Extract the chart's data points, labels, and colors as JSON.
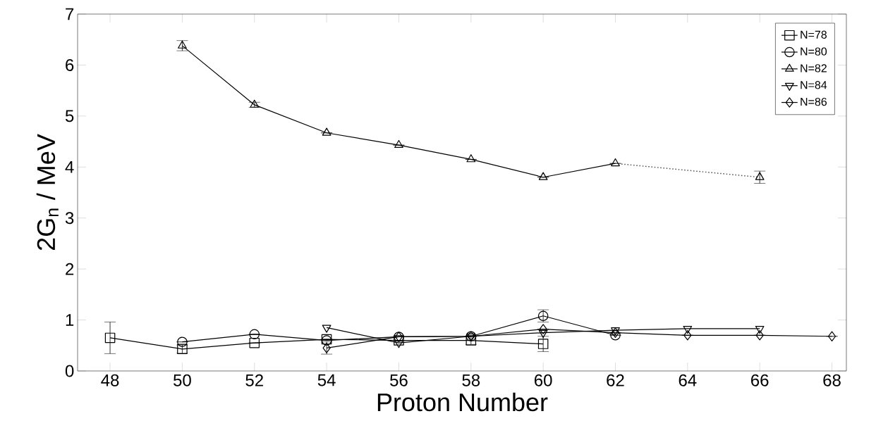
{
  "chart_data": {
    "type": "line",
    "xlabel": "Proton Number",
    "ylabel": "2G$_{n}$ / MeV",
    "xlim": [
      47.1,
      68.4
    ],
    "ylim": [
      0,
      7
    ],
    "xticks": [
      48,
      50,
      52,
      54,
      56,
      58,
      60,
      62,
      64,
      66,
      68
    ],
    "yticks": [
      0,
      1,
      2,
      3,
      4,
      5,
      6,
      7
    ],
    "grid": false,
    "legend": "top right",
    "line_style": "solid",
    "series": [
      {
        "name": "N=78",
        "color": "#000000",
        "marker": "square",
        "x": [
          48,
          50,
          52,
          54,
          56,
          58,
          60
        ],
        "values": [
          0.65,
          0.43,
          0.55,
          0.62,
          0.6,
          0.6,
          0.53
        ],
        "errors": [
          0.31,
          0.08,
          null,
          null,
          null,
          0.08,
          0.15
        ]
      },
      {
        "name": "N=80",
        "color": "#000000",
        "marker": "circle",
        "x": [
          50,
          52,
          54,
          56,
          58,
          60,
          62
        ],
        "values": [
          0.57,
          0.72,
          0.6,
          0.67,
          0.68,
          1.08,
          0.7
        ],
        "errors": [
          null,
          null,
          null,
          null,
          null,
          0.12,
          null
        ]
      },
      {
        "name": "N=82",
        "color": "#000000",
        "marker": "triangle",
        "x": [
          50,
          52,
          54,
          56,
          58,
          60,
          62,
          64,
          66
        ],
        "values": [
          6.38,
          5.22,
          4.67,
          4.43,
          4.15,
          3.8,
          4.07,
          null,
          3.8
        ],
        "errors": [
          0.1,
          0.05,
          null,
          null,
          null,
          null,
          null,
          null,
          0.12
        ]
      },
      {
        "name": "N=84",
        "color": "#000000",
        "marker": "triangle_down",
        "x": [
          54,
          56,
          58,
          60,
          62,
          64,
          66
        ],
        "values": [
          0.85,
          0.55,
          0.68,
          0.75,
          0.8,
          0.83,
          0.83
        ]
      },
      {
        "name": "N=86",
        "color": "#000000",
        "marker": "diamond",
        "x": [
          54,
          56,
          58,
          60,
          62,
          64,
          66,
          68
        ],
        "values": [
          0.45,
          0.67,
          0.68,
          0.82,
          0.75,
          0.7,
          0.7,
          0.68
        ],
        "errors": [
          0.12,
          null,
          null,
          null,
          null,
          null,
          null,
          null
        ]
      },
      {
        "color": "#555555",
        "marker": "none",
        "line_style": "dotted",
        "x": [
          62,
          66
        ],
        "values": [
          4.07,
          3.8
        ]
      }
    ]
  }
}
